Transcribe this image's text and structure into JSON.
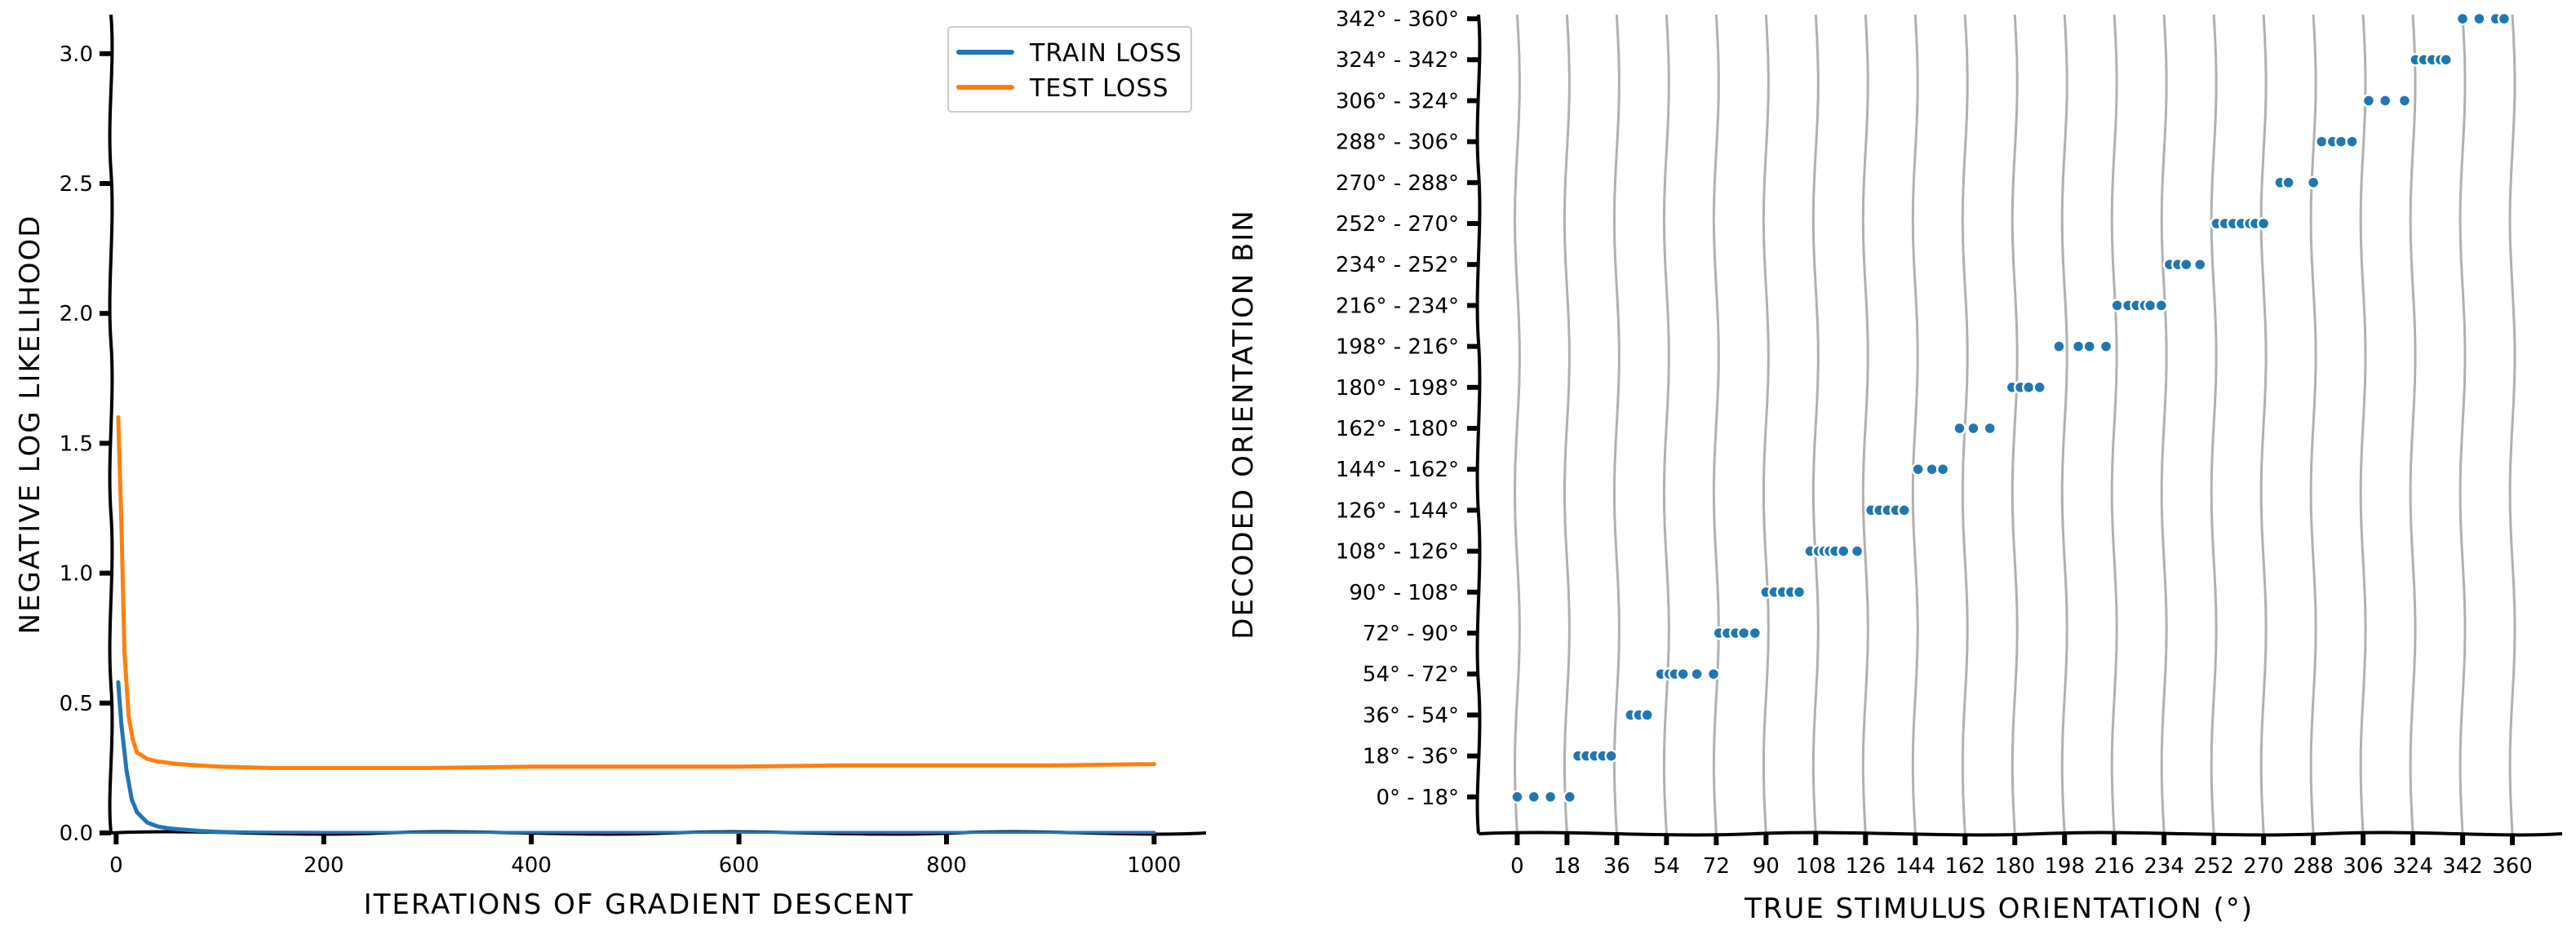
{
  "chart_data": [
    {
      "type": "line",
      "title": "",
      "xlabel": "ITERATIONS OF GRADIENT DESCENT",
      "ylabel": "NEGATIVE LOG LIKELIHOOD",
      "xlim": [
        -5,
        1050
      ],
      "ylim": [
        0,
        3.15
      ],
      "xticks": [
        0,
        200,
        400,
        600,
        800,
        1000
      ],
      "xtick_labels": [
        "0",
        "200",
        "400",
        "600",
        "800",
        "1000"
      ],
      "yticks": [
        0.0,
        0.5,
        1.0,
        1.5,
        2.0,
        2.5,
        3.0
      ],
      "ytick_labels": [
        "0.0",
        "0.5",
        "1.0",
        "1.5",
        "2.0",
        "2.5",
        "3.0"
      ],
      "grid": false,
      "legend": "top-right",
      "series": [
        {
          "name": "TRAIN LOSS",
          "color": "#1f77b4",
          "x": [
            2,
            5,
            10,
            15,
            20,
            30,
            40,
            50,
            60,
            80,
            100,
            120,
            150,
            200,
            300,
            400,
            500,
            600,
            700,
            800,
            900,
            1000
          ],
          "y": [
            0.58,
            0.42,
            0.24,
            0.13,
            0.08,
            0.04,
            0.025,
            0.018,
            0.014,
            0.008,
            0.004,
            0.002,
            0.001,
            0.0,
            0.0,
            0.0,
            0.0,
            0.0,
            0.0,
            0.0,
            0.0,
            0.0
          ]
        },
        {
          "name": "TEST LOSS",
          "color": "#ff7f0e",
          "x": [
            2,
            5,
            8,
            12,
            16,
            20,
            30,
            40,
            60,
            80,
            100,
            150,
            200,
            300,
            400,
            500,
            600,
            700,
            800,
            900,
            1000
          ],
          "y": [
            1.6,
            1.2,
            0.7,
            0.45,
            0.36,
            0.31,
            0.285,
            0.275,
            0.265,
            0.26,
            0.255,
            0.25,
            0.25,
            0.25,
            0.255,
            0.255,
            0.255,
            0.26,
            0.26,
            0.26,
            0.265
          ]
        }
      ]
    },
    {
      "type": "scatter",
      "title": "",
      "xlabel": "TRUE STIMULUS ORIENTATION (°)",
      "ylabel": "DECODED ORIENTATION BIN",
      "xlim": [
        -14,
        378
      ],
      "ylim": [
        -0.9,
        19.1
      ],
      "xticks": [
        0,
        18,
        36,
        54,
        72,
        90,
        108,
        126,
        144,
        162,
        180,
        198,
        216,
        234,
        252,
        270,
        288,
        306,
        324,
        342,
        360
      ],
      "xtick_labels": [
        "0",
        "18",
        "36",
        "54",
        "72",
        "90",
        "108",
        "126",
        "144",
        "162",
        "180",
        "198",
        "216",
        "234",
        "252",
        "270",
        "288",
        "306",
        "324",
        "342",
        "360"
      ],
      "ytick_labels": [
        "0° - 18°",
        "18° - 36°",
        "36° - 54°",
        "54° - 72°",
        "72° - 90°",
        "90° - 108°",
        "108° - 126°",
        "126° - 144°",
        "144° - 162°",
        "162° - 180°",
        "180° - 198°",
        "198° - 216°",
        "216° - 234°",
        "234° - 252°",
        "252° - 270°",
        "270° - 288°",
        "288° - 306°",
        "306° - 324°",
        "324° - 342°",
        "342° - 360°"
      ],
      "vertical_grid": true,
      "color": "#1f77b4",
      "points": [
        [
          0,
          0
        ],
        [
          6,
          0
        ],
        [
          12,
          0
        ],
        [
          19,
          0
        ],
        [
          22,
          1
        ],
        [
          25,
          1
        ],
        [
          28,
          1
        ],
        [
          31,
          1
        ],
        [
          34,
          1
        ],
        [
          41,
          2
        ],
        [
          44,
          2
        ],
        [
          47,
          2
        ],
        [
          52,
          3
        ],
        [
          55,
          3
        ],
        [
          57,
          3
        ],
        [
          60,
          3
        ],
        [
          65,
          3
        ],
        [
          71,
          3
        ],
        [
          73,
          4
        ],
        [
          76,
          4
        ],
        [
          79,
          4
        ],
        [
          82,
          4
        ],
        [
          86,
          4
        ],
        [
          90,
          5
        ],
        [
          93,
          5
        ],
        [
          96,
          5
        ],
        [
          99,
          5
        ],
        [
          102,
          5
        ],
        [
          106,
          6
        ],
        [
          109,
          6
        ],
        [
          111,
          6
        ],
        [
          113,
          6
        ],
        [
          115,
          6
        ],
        [
          118,
          6
        ],
        [
          123,
          6
        ],
        [
          128,
          7
        ],
        [
          131,
          7
        ],
        [
          134,
          7
        ],
        [
          137,
          7
        ],
        [
          140,
          7
        ],
        [
          145,
          8
        ],
        [
          150,
          8
        ],
        [
          154,
          8
        ],
        [
          160,
          9
        ],
        [
          165,
          9
        ],
        [
          171,
          9
        ],
        [
          179,
          10
        ],
        [
          182,
          10
        ],
        [
          185,
          10
        ],
        [
          189,
          10
        ],
        [
          196,
          11
        ],
        [
          203,
          11
        ],
        [
          207,
          11
        ],
        [
          213,
          11
        ],
        [
          217,
          12
        ],
        [
          221,
          12
        ],
        [
          224,
          12
        ],
        [
          227,
          12
        ],
        [
          229,
          12
        ],
        [
          233,
          12
        ],
        [
          236,
          13
        ],
        [
          239,
          13
        ],
        [
          242,
          13
        ],
        [
          247,
          13
        ],
        [
          253,
          14
        ],
        [
          256,
          14
        ],
        [
          259,
          14
        ],
        [
          262,
          14
        ],
        [
          265,
          14
        ],
        [
          267,
          14
        ],
        [
          270,
          14
        ],
        [
          276,
          15
        ],
        [
          279,
          15
        ],
        [
          288,
          15
        ],
        [
          291,
          16
        ],
        [
          295,
          16
        ],
        [
          298,
          16
        ],
        [
          302,
          16
        ],
        [
          308,
          17
        ],
        [
          314,
          17
        ],
        [
          321,
          17
        ],
        [
          325,
          18
        ],
        [
          328,
          18
        ],
        [
          331,
          18
        ],
        [
          334,
          18
        ],
        [
          336,
          18
        ],
        [
          342,
          19
        ],
        [
          348,
          19
        ],
        [
          354,
          19
        ],
        [
          357,
          19
        ]
      ]
    }
  ]
}
